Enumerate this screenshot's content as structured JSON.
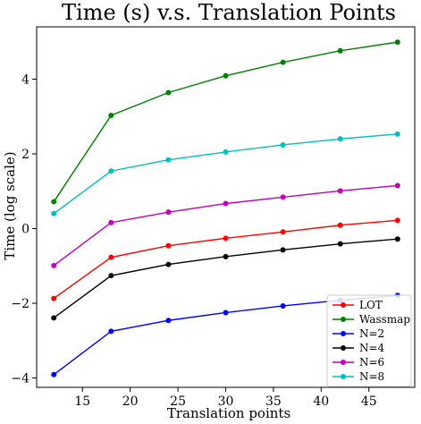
{
  "chart_data": {
    "type": "line",
    "title": "Time (s) v.s. Translation Points",
    "xlabel": "Translation points",
    "ylabel": "Time (log scale)",
    "x": [
      12,
      18,
      24,
      30,
      36,
      42,
      48
    ],
    "xlim": [
      10.2,
      49.8
    ],
    "ylim": [
      -4.25,
      5.4
    ],
    "xticks": [
      15,
      20,
      25,
      30,
      35,
      40,
      45
    ],
    "yticks": [
      -4,
      -2,
      0,
      2,
      4
    ],
    "ytick_labels": [
      "−4",
      "−2",
      "0",
      "2",
      "4"
    ],
    "grid": false,
    "legend_position": "lower-right",
    "series": [
      {
        "name": "LOT",
        "color": "#ff0000",
        "values": [
          -1.87,
          -0.77,
          -0.46,
          -0.26,
          -0.09,
          0.09,
          0.22
        ]
      },
      {
        "name": "Wassmap",
        "color": "#008000",
        "values": [
          0.72,
          3.03,
          3.64,
          4.09,
          4.45,
          4.76,
          4.99
        ]
      },
      {
        "name": "N=2",
        "color": "#0000ff",
        "values": [
          -3.91,
          -2.75,
          -2.46,
          -2.25,
          -2.07,
          -1.92,
          -1.79
        ]
      },
      {
        "name": "N=4",
        "color": "#000000",
        "values": [
          -2.39,
          -1.26,
          -0.96,
          -0.75,
          -0.57,
          -0.41,
          -0.28
        ]
      },
      {
        "name": "N=6",
        "color": "#bf00bf",
        "values": [
          -0.99,
          0.16,
          0.44,
          0.67,
          0.84,
          1.01,
          1.15
        ]
      },
      {
        "name": "N=8",
        "color": "#00bfbf",
        "values": [
          0.4,
          1.54,
          1.84,
          2.05,
          2.24,
          2.4,
          2.53
        ]
      }
    ]
  }
}
